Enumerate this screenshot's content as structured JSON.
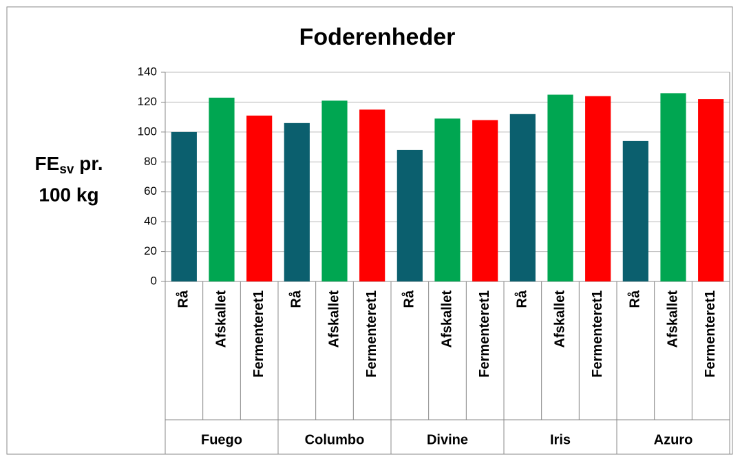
{
  "chart_data": {
    "type": "bar",
    "title": "Foderenheder",
    "y_label": {
      "main": "FE",
      "sub": "sv",
      "rest": " pr.",
      "line2": "100 kg"
    },
    "groups": [
      "Fuego",
      "Columbo",
      "Divine",
      "Iris",
      "Azuro"
    ],
    "series": [
      {
        "name": "Rå",
        "color": "#0b5f6e",
        "values": [
          100,
          106,
          88,
          112,
          94
        ]
      },
      {
        "name": "Afskallet",
        "color": "#00a651",
        "values": [
          123,
          121,
          109,
          125,
          126
        ]
      },
      {
        "name": "Fermenteret1",
        "color": "#ff0000",
        "values": [
          111,
          115,
          108,
          124,
          122
        ]
      }
    ],
    "ylim": [
      0,
      140
    ],
    "yticks": [
      0,
      20,
      40,
      60,
      80,
      100,
      120,
      140
    ],
    "grid": true
  }
}
